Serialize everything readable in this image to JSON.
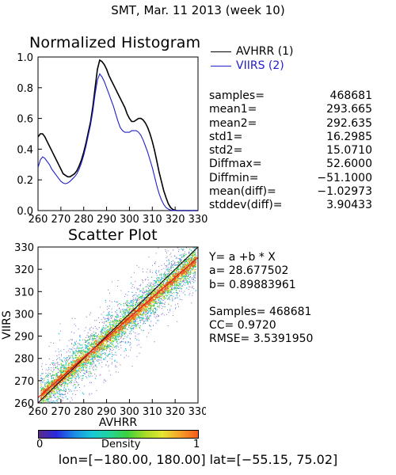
{
  "page": {
    "title": "SMT,  Mar. 11 2013 (week 10)",
    "footer": "lon=[−180.00, 180.00] lat=[−55.15, 75.02]"
  },
  "histogram": {
    "title": "Normalized Histogram",
    "legend": [
      {
        "label": "AVHRR (1)",
        "color": "#000000"
      },
      {
        "label": "VIIRS (2)",
        "color": "#2020c8"
      }
    ],
    "stats": [
      {
        "label": "samples=",
        "value": "468681"
      },
      {
        "label": "mean1=",
        "value": "293.665"
      },
      {
        "label": "mean2=",
        "value": "292.635"
      },
      {
        "label": "std1=",
        "value": "16.2985"
      },
      {
        "label": "std2=",
        "value": "15.0710"
      },
      {
        "label": "Diffmax=",
        "value": "52.6000"
      },
      {
        "label": "Diffmin=",
        "value": "−51.1000"
      },
      {
        "label": "mean(diff)=",
        "value": "−1.02973"
      },
      {
        "label": "stddev(diff)=",
        "value": "3.90433"
      }
    ]
  },
  "scatter": {
    "title": "Scatter Plot",
    "fit": {
      "equation": "Y= a +b * X",
      "a": "a= 28.677502",
      "b": "b= 0.89883961",
      "samples": "Samples= 468681",
      "cc": "CC=  0.9720",
      "rmse": "RMSE= 3.5391950"
    },
    "colorbar": {
      "label": "Density",
      "min_label": "0",
      "max_label": "1",
      "colors": [
        "#5a2a8a",
        "#2a2ae0",
        "#1a8ae6",
        "#19c8d8",
        "#22d49a",
        "#3cd23c",
        "#a6dc28",
        "#e6e632",
        "#f5a028",
        "#f55a1e"
      ]
    }
  },
  "chart_data": [
    {
      "type": "line",
      "title": "Normalized Histogram",
      "xlabel": "",
      "ylabel": "",
      "xlim": [
        260,
        330
      ],
      "ylim": [
        0.0,
        1.0
      ],
      "xticks": [
        "260",
        "270",
        "280",
        "290",
        "300",
        "310",
        "320",
        "330"
      ],
      "yticks": [
        "0.0",
        "0.2",
        "0.4",
        "0.6",
        "0.8",
        "1.0"
      ],
      "series": [
        {
          "name": "AVHRR (1)",
          "color": "#000000",
          "x": [
            260,
            261,
            262,
            263,
            264,
            265,
            266,
            267,
            268,
            269,
            270,
            271,
            272,
            273,
            274,
            275,
            276,
            277,
            278,
            279,
            280,
            281,
            282,
            283,
            284,
            285,
            286,
            287,
            288,
            289,
            290,
            291,
            292,
            293,
            294,
            295,
            296,
            297,
            298,
            299,
            300,
            301,
            302,
            303,
            304,
            305,
            306,
            307,
            308,
            309,
            310,
            311,
            312,
            313,
            314,
            315,
            316,
            317,
            318,
            319,
            320,
            321,
            322,
            323,
            324,
            325,
            326,
            327,
            328,
            329,
            330
          ],
          "y": [
            0.48,
            0.5,
            0.5,
            0.48,
            0.45,
            0.42,
            0.39,
            0.36,
            0.33,
            0.3,
            0.27,
            0.24,
            0.23,
            0.22,
            0.22,
            0.23,
            0.24,
            0.26,
            0.29,
            0.33,
            0.38,
            0.44,
            0.51,
            0.58,
            0.68,
            0.8,
            0.92,
            0.98,
            0.97,
            0.95,
            0.92,
            0.88,
            0.85,
            0.82,
            0.79,
            0.76,
            0.73,
            0.7,
            0.67,
            0.63,
            0.6,
            0.58,
            0.58,
            0.59,
            0.6,
            0.6,
            0.59,
            0.57,
            0.54,
            0.5,
            0.45,
            0.39,
            0.32,
            0.25,
            0.19,
            0.13,
            0.085,
            0.045,
            0.02,
            0.007,
            0.002,
            0.0,
            0.0,
            0.0,
            0.0,
            0.0,
            0.0,
            0.0,
            0.0,
            0.0,
            0.0
          ]
        },
        {
          "name": "VIIRS (2)",
          "color": "#2020c8",
          "x": [
            260,
            261,
            262,
            263,
            264,
            265,
            266,
            267,
            268,
            269,
            270,
            271,
            272,
            273,
            274,
            275,
            276,
            277,
            278,
            279,
            280,
            281,
            282,
            283,
            284,
            285,
            286,
            287,
            288,
            289,
            290,
            291,
            292,
            293,
            294,
            295,
            296,
            297,
            298,
            299,
            300,
            301,
            302,
            303,
            304,
            305,
            306,
            307,
            308,
            309,
            310,
            311,
            312,
            313,
            314,
            315,
            316,
            317,
            318,
            319,
            320,
            321,
            322,
            323,
            324,
            325,
            326,
            327,
            328,
            329,
            330
          ],
          "y": [
            0.28,
            0.33,
            0.35,
            0.34,
            0.32,
            0.3,
            0.27,
            0.25,
            0.23,
            0.21,
            0.19,
            0.18,
            0.175,
            0.18,
            0.19,
            0.205,
            0.22,
            0.24,
            0.27,
            0.31,
            0.36,
            0.42,
            0.49,
            0.56,
            0.65,
            0.76,
            0.85,
            0.89,
            0.87,
            0.84,
            0.8,
            0.76,
            0.72,
            0.68,
            0.63,
            0.58,
            0.54,
            0.52,
            0.51,
            0.51,
            0.51,
            0.52,
            0.52,
            0.52,
            0.51,
            0.49,
            0.46,
            0.42,
            0.38,
            0.33,
            0.28,
            0.22,
            0.16,
            0.11,
            0.07,
            0.04,
            0.02,
            0.01,
            0.004,
            0.001,
            0.0,
            0.0,
            0.0,
            0.0,
            0.0,
            0.0,
            0.0,
            0.0,
            0.0,
            0.0,
            0.0
          ]
        }
      ]
    },
    {
      "type": "scatter",
      "title": "Scatter Plot",
      "xlabel": "AVHRR",
      "ylabel": "VIIRS",
      "xlim": [
        260,
        330
      ],
      "ylim": [
        260,
        330
      ],
      "xticks": [
        "260",
        "270",
        "280",
        "290",
        "300",
        "310",
        "320",
        "330"
      ],
      "yticks": [
        "260",
        "270",
        "280",
        "290",
        "300",
        "310",
        "320",
        "330"
      ],
      "fit": {
        "a": 28.677502,
        "b": 0.89883961
      },
      "samples": 468681,
      "cc": 0.972,
      "rmse": 3.539195,
      "density_colorbar": [
        0,
        1
      ],
      "lines": [
        {
          "name": "1:1",
          "color": "#000000"
        },
        {
          "name": "fit",
          "color": "#dc1e1e"
        }
      ]
    }
  ]
}
